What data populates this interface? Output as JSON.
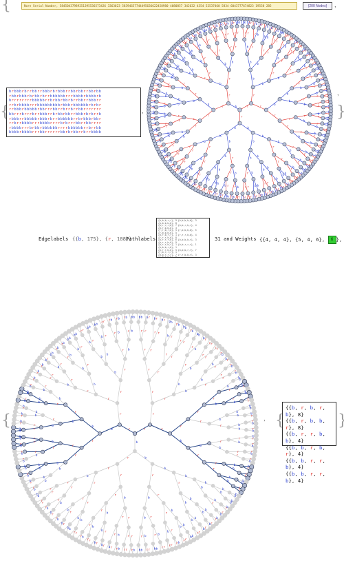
{
  "header": {
    "serial_label": "Nore Serial Number, 58450437989251395536573426 3363023 58394657744495636622458980 4080857 342632 4354 52537460 5834 6043777674823 19558 285",
    "nodes_badge": "{200 Nodes}"
  },
  "mid": {
    "edgelabels_label": "Edgelabels",
    "edge_b_letter": "b",
    "edge_b_count": "175",
    "edge_r_letter": "r",
    "edge_r_count": "188",
    "pathlabels_label": "Pathlabels",
    "count_text": "31 and Weights",
    "weights": [
      "{4, 4, 4}",
      "{5, 4, 6}"
    ],
    "green_btn_label": "6"
  },
  "tuples": [
    {
      "seq": [
        "b",
        "r",
        "b",
        "r",
        "b"
      ],
      "w": "8"
    },
    {
      "seq": [
        "b",
        "r",
        "b",
        "b",
        "r"
      ],
      "w": "8"
    },
    {
      "seq": [
        "b",
        "r",
        "r",
        "b",
        "b"
      ],
      "w": "4"
    },
    {
      "seq": [
        "b",
        "b",
        "r",
        "b",
        "r"
      ],
      "w": "4"
    },
    {
      "seq": [
        "b",
        "b",
        "r",
        "r",
        "b"
      ],
      "w": "4"
    },
    {
      "seq": [
        "b",
        "b",
        "r",
        "r",
        "b"
      ],
      "w": "4"
    }
  ],
  "colors": {
    "blue": "#2a3fd0",
    "red": "#e0302a",
    "gray": "#c9c9c9",
    "green": "#33cc33"
  }
}
